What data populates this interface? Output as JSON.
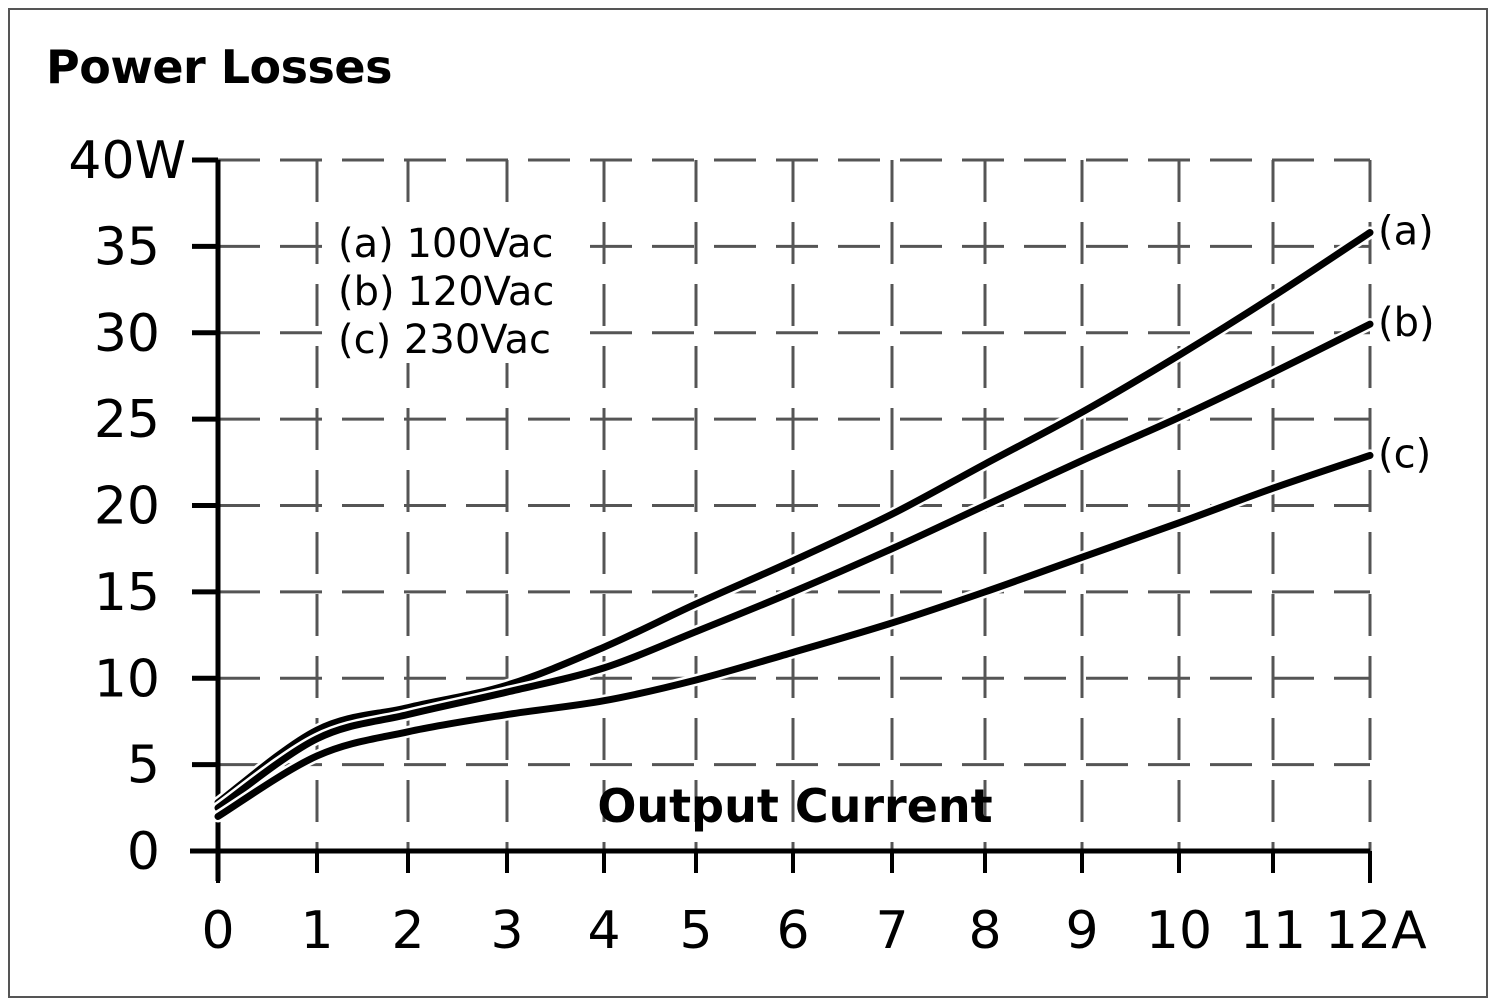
{
  "chart_data": {
    "type": "line",
    "title": "Power Losses",
    "xlabel": "Output Current",
    "ylabel": "",
    "x_unit": "A",
    "y_unit": "W",
    "x": [
      0,
      1,
      2,
      3,
      4,
      5,
      6,
      7,
      8,
      9,
      10,
      11,
      12
    ],
    "x_tick_labels": [
      "0",
      "1",
      "2",
      "3",
      "4",
      "5",
      "6",
      "7",
      "8",
      "9",
      "10",
      "11",
      "12A"
    ],
    "y_ticks": [
      0,
      5,
      10,
      15,
      20,
      25,
      30,
      35,
      40
    ],
    "y_tick_labels": [
      "0",
      "5",
      "10",
      "15",
      "20",
      "25",
      "30",
      "35",
      "40W"
    ],
    "xlim": [
      0,
      12
    ],
    "ylim": [
      0,
      40
    ],
    "grid": true,
    "grid_style": "dashed",
    "legend_position": "upper-left",
    "legend": [
      "(a) 100Vac",
      "(b) 120Vac",
      "(c)  230Vac"
    ],
    "series": [
      {
        "name": "(a) 100Vac",
        "end_label": "(a)",
        "values": [
          2.8,
          7.0,
          8.3,
          9.6,
          11.8,
          14.3,
          16.8,
          19.5,
          22.4,
          25.4,
          28.7,
          32.1,
          35.8
        ]
      },
      {
        "name": "(b) 120Vac",
        "end_label": "(b)",
        "values": [
          2.5,
          6.5,
          7.9,
          9.2,
          10.6,
          12.7,
          15.0,
          17.5,
          20.0,
          22.6,
          25.1,
          27.7,
          30.5
        ]
      },
      {
        "name": "(c) 230Vac",
        "end_label": "(c)",
        "values": [
          2.0,
          5.5,
          6.9,
          7.9,
          8.7,
          9.9,
          11.5,
          13.2,
          15.0,
          17.0,
          19.0,
          21.0,
          22.9
        ]
      }
    ],
    "colors": {
      "line": "#000000",
      "grid": "#555555",
      "axis": "#000000"
    }
  }
}
